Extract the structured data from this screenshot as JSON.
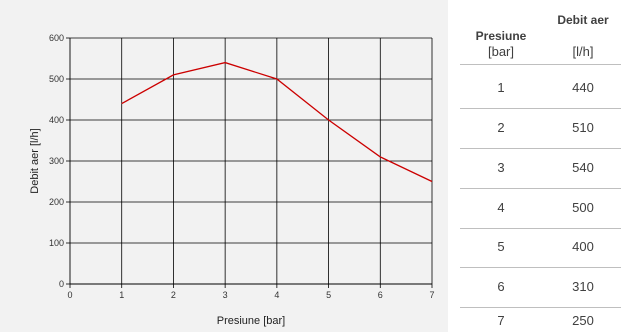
{
  "chart_data": {
    "type": "line",
    "x": [
      1,
      2,
      3,
      4,
      5,
      6,
      7
    ],
    "series": [
      {
        "values": [
          440,
          510,
          540,
          500,
          400,
          310,
          250
        ],
        "color": "#cc0000"
      }
    ],
    "xlabel": "Presiune [bar]",
    "ylabel": "Debit aer [l/h]",
    "xlim": [
      0,
      7
    ],
    "ylim": [
      0,
      600
    ],
    "xticks": [
      "0",
      "1",
      "2",
      "3",
      "4",
      "5",
      "6",
      "7"
    ],
    "yticks": [
      "0",
      "100",
      "200",
      "300",
      "400",
      "500",
      "600"
    ],
    "grid": true
  },
  "table": {
    "headers": [
      {
        "name": "Presiune",
        "unit": "[bar]"
      },
      {
        "name": "Debit aer",
        "unit": "[l/h]"
      }
    ],
    "rows": [
      [
        "1",
        "440"
      ],
      [
        "2",
        "510"
      ],
      [
        "3",
        "540"
      ],
      [
        "4",
        "500"
      ],
      [
        "5",
        "400"
      ],
      [
        "6",
        "310"
      ],
      [
        "7",
        "250"
      ]
    ]
  }
}
